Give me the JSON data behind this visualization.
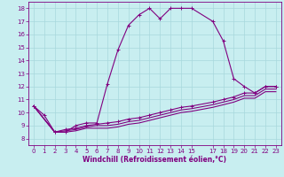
{
  "xlabel": "Windchill (Refroidissement éolien,°C)",
  "bg_color": "#c8eef0",
  "grid_color": "#a8d8dc",
  "line_color": "#800080",
  "spine_color": "#800080",
  "x_ticks": [
    0,
    1,
    2,
    3,
    4,
    5,
    6,
    7,
    8,
    9,
    10,
    11,
    12,
    13,
    14,
    15,
    17,
    18,
    19,
    20,
    21,
    22,
    23
  ],
  "x_tick_labels": [
    "0",
    "1",
    "2",
    "3",
    "4",
    "5",
    "6",
    "7",
    "8",
    "9",
    "10",
    "11",
    "12",
    "13",
    "14",
    "15",
    "17",
    "18",
    "19",
    "20",
    "21",
    "22",
    "23"
  ],
  "y_ticks": [
    8,
    9,
    10,
    11,
    12,
    13,
    14,
    15,
    16,
    17,
    18
  ],
  "xlim": [
    -0.5,
    23.5
  ],
  "ylim": [
    7.5,
    18.5
  ],
  "curve1_x": [
    0,
    1,
    2,
    3,
    4,
    5,
    6,
    7,
    8,
    9,
    10,
    11,
    12,
    13,
    14,
    15,
    17,
    18,
    19,
    20,
    21,
    22,
    23
  ],
  "curve1_y": [
    10.5,
    9.8,
    8.5,
    8.5,
    9.0,
    9.2,
    9.2,
    12.2,
    14.8,
    16.7,
    17.5,
    18.0,
    17.2,
    18.0,
    18.0,
    18.0,
    17.0,
    15.5,
    12.6,
    12.0,
    11.5,
    12.0,
    12.0
  ],
  "curve2_x": [
    0,
    2,
    3,
    4,
    5,
    6,
    7,
    8,
    9,
    10,
    11,
    12,
    13,
    14,
    15,
    17,
    18,
    19,
    20,
    21,
    22,
    23
  ],
  "curve2_y": [
    10.5,
    8.5,
    8.7,
    8.8,
    9.0,
    9.1,
    9.2,
    9.3,
    9.5,
    9.6,
    9.8,
    10.0,
    10.2,
    10.4,
    10.5,
    10.8,
    11.0,
    11.2,
    11.5,
    11.5,
    12.0,
    12.0
  ],
  "curve3_x": [
    0,
    2,
    3,
    4,
    5,
    6,
    7,
    8,
    9,
    10,
    11,
    12,
    13,
    14,
    15,
    17,
    18,
    19,
    20,
    21,
    22,
    23
  ],
  "curve3_y": [
    10.5,
    8.5,
    8.6,
    8.7,
    8.9,
    9.0,
    9.0,
    9.1,
    9.3,
    9.4,
    9.6,
    9.8,
    10.0,
    10.2,
    10.3,
    10.6,
    10.8,
    11.0,
    11.3,
    11.3,
    11.8,
    11.8
  ],
  "curve4_x": [
    0,
    2,
    3,
    4,
    5,
    6,
    7,
    8,
    9,
    10,
    11,
    12,
    13,
    14,
    15,
    17,
    18,
    19,
    20,
    21,
    22,
    23
  ],
  "curve4_y": [
    10.5,
    8.5,
    8.5,
    8.6,
    8.8,
    8.8,
    8.8,
    8.9,
    9.1,
    9.2,
    9.4,
    9.6,
    9.8,
    10.0,
    10.1,
    10.4,
    10.6,
    10.8,
    11.1,
    11.1,
    11.6,
    11.6
  ],
  "tick_fontsize": 5,
  "xlabel_fontsize": 5.5,
  "marker_size": 2.5,
  "linewidth": 0.8
}
